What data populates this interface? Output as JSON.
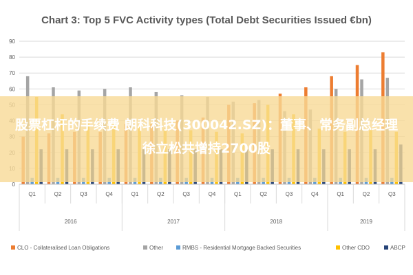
{
  "overlay": {
    "headline": "股票杠杆的手续费 朗科科技(300042.SZ)：董事、常务副总经理徐立松共增持2700股"
  },
  "chart_data": {
    "type": "bar",
    "title": "Chart 3: Top 5 FVC Activity types (Total Debt Securities Issued €bn)",
    "xlabel": "",
    "ylabel": "",
    "ylim": [
      0,
      90
    ],
    "yticks": [
      0,
      10,
      20,
      30,
      40,
      50,
      60,
      70,
      80,
      90
    ],
    "grid": true,
    "legend_position": "bottom",
    "categories": [
      "Q1",
      "Q2",
      "Q3",
      "Q4",
      "Q1",
      "Q2",
      "Q3",
      "Q4",
      "Q1",
      "Q2",
      "Q3",
      "Q4",
      "Q1",
      "Q2",
      "Q3"
    ],
    "groups": [
      {
        "label": "2016",
        "count": 4
      },
      {
        "label": "2017",
        "count": 4
      },
      {
        "label": "2018",
        "count": 4
      },
      {
        "label": "2019",
        "count": 3
      }
    ],
    "series": [
      {
        "name": "CLO - Collateralised Loan Obligations",
        "color": "#ED7D31",
        "values": [
          30,
          32,
          33,
          33,
          38,
          38,
          40,
          42,
          50,
          51,
          57,
          61,
          68,
          75,
          83
        ]
      },
      {
        "name": "Other",
        "color": "#A5A5A5",
        "values": [
          68,
          61,
          59,
          60,
          61,
          58,
          56,
          55,
          52,
          53,
          46,
          47,
          60,
          66,
          67
        ]
      },
      {
        "name": "RMBS - Residential Mortgage Backed Securities",
        "color": "#5B9BD5",
        "values": [
          4,
          4,
          4,
          4,
          4,
          4,
          4,
          4,
          4,
          4,
          4,
          4,
          4,
          4,
          4
        ]
      },
      {
        "name": "Other CDO",
        "color": "#FFC000",
        "values": [
          55,
          44,
          39,
          38,
          36,
          35,
          34,
          33,
          32,
          50,
          44,
          35,
          33,
          34,
          33
        ]
      },
      {
        "name": "ABCP",
        "color": "#264478",
        "values": [
          22,
          22,
          22,
          22,
          22,
          22,
          22,
          22,
          22,
          22,
          22,
          22,
          22,
          22,
          25
        ]
      }
    ]
  }
}
